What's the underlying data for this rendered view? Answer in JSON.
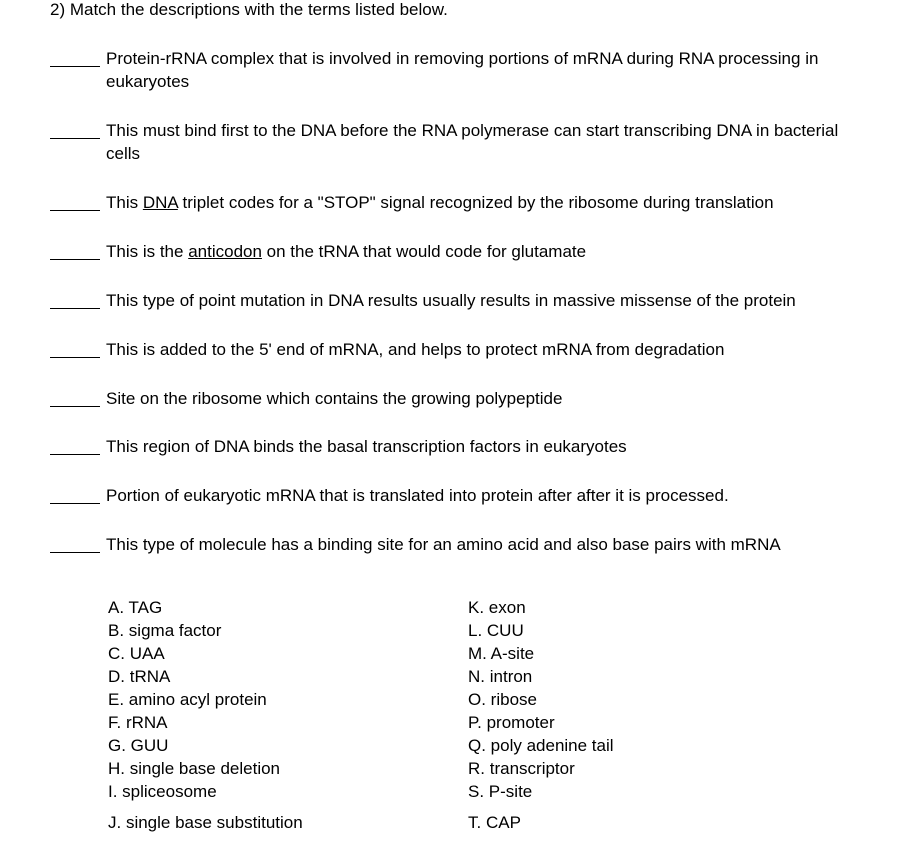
{
  "heading": "2)  Match the descriptions with the terms listed below.",
  "questions": [
    {
      "pre": "Protein-rRNA complex that is involved in removing portions of mRNA during RNA processing in eukaryotes"
    },
    {
      "pre": " This must bind first to the DNA before the RNA polymerase can start transcribing DNA in bacterial cells"
    },
    {
      "pre": " This ",
      "u": "DNA",
      "post": " triplet codes for a \"STOP\" signal recognized by the ribosome during translation"
    },
    {
      "pre": " This is the ",
      "u": "anticodon",
      "post": " on the tRNA that would code for glutamate"
    },
    {
      "pre": " This type of point mutation in DNA results usually results in massive missense of the protein"
    },
    {
      "pre": "This is added to the 5' end of mRNA, and helps to protect mRNA from degradation"
    },
    {
      "pre": " Site on the ribosome which contains the growing polypeptide"
    },
    {
      "pre": " This region of DNA binds the basal transcription factors in eukaryotes"
    },
    {
      "pre": " Portion of eukaryotic mRNA that is translated into protein after after it is processed."
    },
    {
      "pre": " This type of molecule has a binding site for an amino acid and also base pairs with mRNA"
    }
  ],
  "answers_left": [
    {
      "letter": "A.",
      "term": "TAG"
    },
    {
      "letter": "B.",
      "term": "sigma factor"
    },
    {
      "letter": "C.",
      "term": "UAA"
    },
    {
      "letter": "D.",
      "term": "tRNA"
    },
    {
      "letter": "E.",
      "term": "amino acyl protein"
    },
    {
      "letter": "F.",
      "term": "rRNA"
    },
    {
      "letter": "G.",
      "term": "GUU"
    },
    {
      "letter": "H.",
      "term": "single base deletion"
    },
    {
      "letter": "I.",
      "term": "spliceosome"
    },
    {
      "letter": "J.",
      "term": "single base substitution",
      "last": true
    }
  ],
  "answers_right": [
    {
      "letter": "K.",
      "term": "exon"
    },
    {
      "letter": "L.",
      "term": "CUU"
    },
    {
      "letter": "M.",
      "term": "A-site"
    },
    {
      "letter": "N.",
      "term": "intron"
    },
    {
      "letter": "O.",
      "term": "ribose"
    },
    {
      "letter": "P.",
      "term": "promoter"
    },
    {
      "letter": "Q.",
      "term": "poly adenine tail"
    },
    {
      "letter": "R.",
      "term": "transcriptor"
    },
    {
      "letter": "S.",
      "term": "P-site"
    },
    {
      "letter": "T.",
      "term": "CAP",
      "last": true
    }
  ]
}
